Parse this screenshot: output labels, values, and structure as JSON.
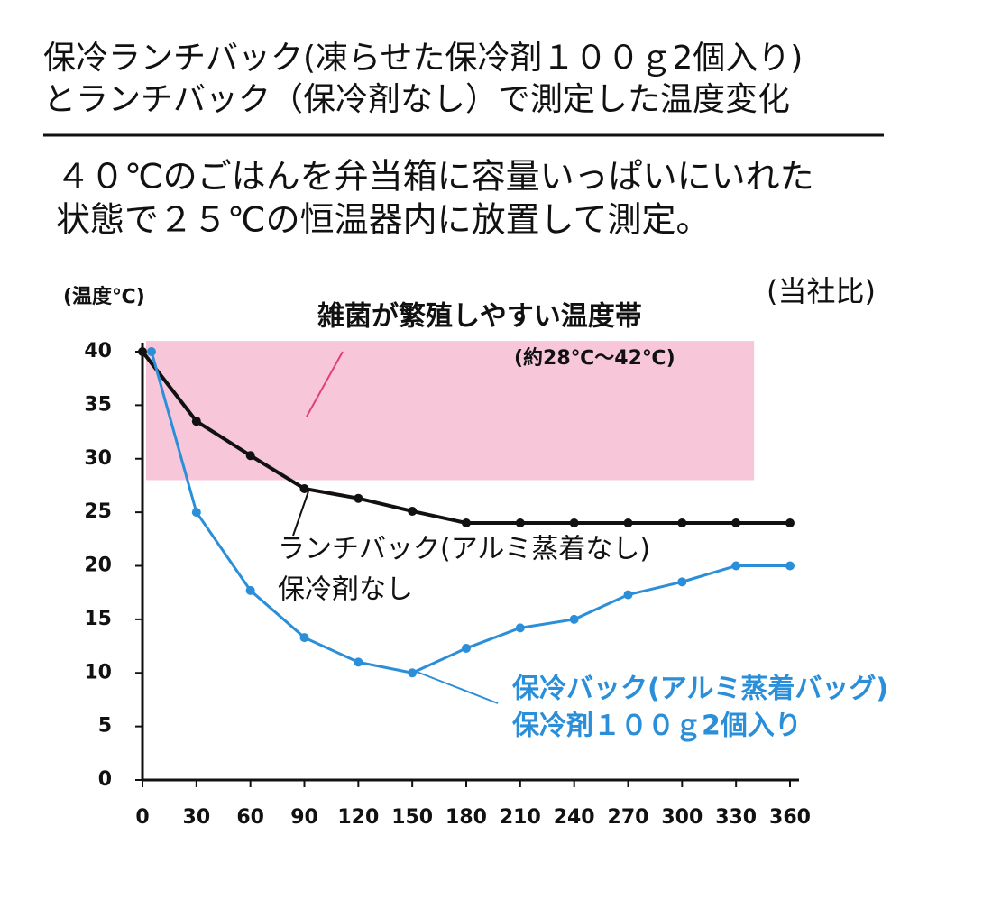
{
  "chart_data": {
    "type": "line",
    "title_lines": [
      "保冷ランチバック(凍らせた保冷剤１００ｇ2個入り)",
      "とランチバック（保冷剤なし）で測定した温度変化"
    ],
    "subtitle_lines": [
      "４０℃のごはんを弁当箱に容量いっぱいにいれた",
      "状態で２５℃の恒温器内に放置して測定。"
    ],
    "y_label": "(温度℃)",
    "note": "(当社比)",
    "xlim": [
      0,
      360
    ],
    "xticks": [
      0,
      30,
      60,
      90,
      120,
      150,
      180,
      210,
      240,
      270,
      300,
      330,
      360
    ],
    "ylim": [
      0,
      40
    ],
    "yticks": [
      0,
      5,
      10,
      15,
      20,
      25,
      30,
      35,
      40
    ],
    "band": {
      "label": "雑菌が繁殖しやすい温度帯",
      "range_label": "(約28℃～42℃)",
      "ylim": [
        28,
        41
      ],
      "xlim": [
        0,
        340
      ],
      "color": "#f7c6d9"
    },
    "series": [
      {
        "label_lines": [
          "ランチバック(アルミ蒸着なし)",
          "保冷剤なし"
        ],
        "color": "#111111",
        "x": [
          0,
          30,
          60,
          90,
          120,
          150,
          180,
          210,
          240,
          270,
          300,
          330,
          360
        ],
        "values": [
          40,
          33.5,
          30.3,
          27.2,
          26.3,
          25.1,
          24,
          24,
          24,
          24,
          24,
          24,
          24
        ]
      },
      {
        "label_lines": [
          "保冷バック(アルミ蒸着バッグ)",
          "保冷剤１００ｇ2個入り"
        ],
        "color": "#2a8fd8",
        "x": [
          5,
          30,
          60,
          90,
          120,
          150,
          180,
          210,
          240,
          270,
          300,
          330,
          360
        ],
        "values": [
          40,
          25,
          17.7,
          13.3,
          11,
          10,
          12.3,
          14.2,
          15,
          17.3,
          18.5,
          20,
          20
        ]
      }
    ]
  }
}
